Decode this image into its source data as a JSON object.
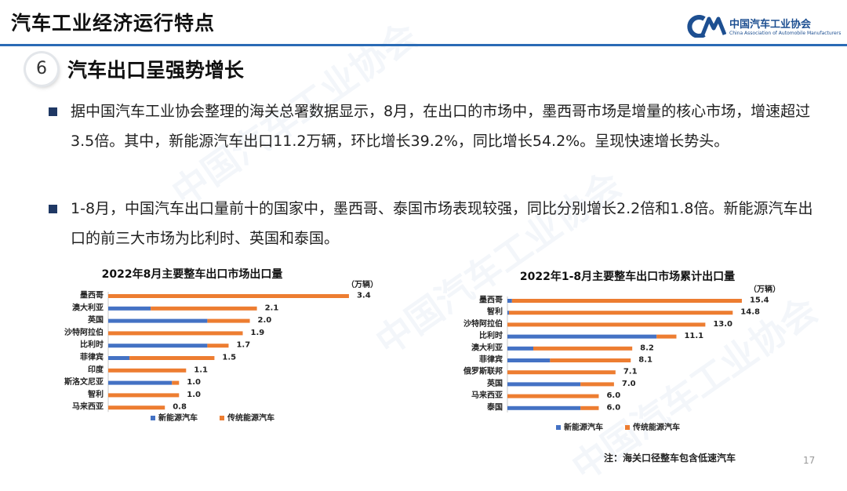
{
  "header": {
    "title": "汽车工业经济运行特点"
  },
  "logo": {
    "name_cn": "中国汽车工业协会",
    "name_en": "China Association of Automobile Manufacturers"
  },
  "section": {
    "number": "6",
    "title": "汽车出口呈强势增长"
  },
  "bullets": [
    "据中国汽车工业协会整理的海关总署数据显示，8月，在出口的市场中，墨西哥市场是增量的核心市场，增速超过3.5倍。其中，新能源汽车出口11.2万辆，环比增长39.2%，同比增长54.2%。呈现快速增长势头。",
    "1-8月，中国汽车出口量前十的国家中，墨西哥、泰国市场表现较强，同比分别增长2.2倍和1.8倍。新能源汽车出口的前三大市场为比利时、英国和泰国。"
  ],
  "chart_data": [
    {
      "type": "bar",
      "orientation": "horizontal",
      "stacked": true,
      "title": "2022年8月主要整车出口市场出口量",
      "unit": "（万辆）",
      "categories": [
        "墨西哥",
        "澳大利亚",
        "英国",
        "沙特阿拉伯",
        "比利时",
        "菲律宾",
        "印度",
        "斯洛文尼亚",
        "智利",
        "马来西亚"
      ],
      "totals": [
        3.4,
        2.1,
        2.0,
        1.9,
        1.7,
        1.5,
        1.1,
        1.0,
        1.0,
        0.8
      ],
      "series": [
        {
          "name": "新能源汽车",
          "color": "#4472c4",
          "values": [
            0.0,
            0.6,
            1.4,
            0.0,
            1.4,
            0.3,
            0.0,
            0.9,
            0.0,
            0.0
          ]
        },
        {
          "name": "传统能源汽车",
          "color": "#ed7d31",
          "values": [
            3.4,
            1.5,
            0.6,
            1.9,
            0.3,
            1.2,
            1.1,
            0.1,
            1.0,
            0.8
          ]
        }
      ],
      "xlim": [
        0,
        3.6
      ],
      "legend": "bottom",
      "grid": false
    },
    {
      "type": "bar",
      "orientation": "horizontal",
      "stacked": true,
      "title": "2022年1-8月主要整车出口市场累计出口量",
      "unit": "（万辆）",
      "categories": [
        "墨西哥",
        "智利",
        "沙特阿拉伯",
        "比利时",
        "澳大利亚",
        "菲律宾",
        "俄罗斯联邦",
        "英国",
        "马来西亚",
        "泰国"
      ],
      "totals": [
        15.4,
        14.8,
        13.0,
        11.1,
        8.2,
        8.1,
        7.1,
        7.0,
        6.0,
        6.0
      ],
      "series": [
        {
          "name": "新能源汽车",
          "color": "#4472c4",
          "values": [
            0.3,
            0.1,
            0.0,
            9.8,
            1.7,
            2.8,
            0.0,
            4.8,
            0.0,
            4.8
          ]
        },
        {
          "name": "传统能源汽车",
          "color": "#ed7d31",
          "values": [
            15.1,
            14.7,
            13.0,
            1.3,
            6.5,
            5.3,
            7.1,
            2.2,
            6.0,
            1.2
          ]
        }
      ],
      "xlim": [
        0,
        17
      ],
      "legend": "bottom",
      "grid": false
    }
  ],
  "footnote": "注：海关口径整车包含低速汽车",
  "page_number": "17"
}
